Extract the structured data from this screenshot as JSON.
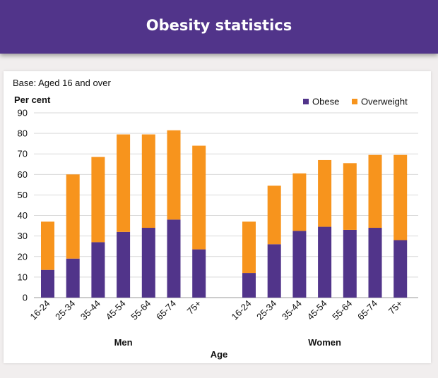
{
  "page": {
    "title": "Obesity statistics"
  },
  "chart_data": {
    "type": "bar",
    "stacked": true,
    "base_note": "Base: Aged 16 and over",
    "ylabel": "Per cent",
    "xlabel": "Age",
    "ylim": [
      0,
      90
    ],
    "yticks": [
      0,
      10,
      20,
      30,
      40,
      50,
      60,
      70,
      80,
      90
    ],
    "grid": true,
    "legend_position": "top-right",
    "groups": [
      {
        "name": "Men",
        "categories": [
          "16-24",
          "25-34",
          "35-44",
          "45-54",
          "55-64",
          "65-74",
          "75+"
        ],
        "series": [
          {
            "name": "Obese",
            "values": [
              13.5,
              19,
              27,
              32,
              34,
              38,
              23.5
            ]
          },
          {
            "name": "Overweight",
            "values": [
              23.5,
              41,
              41.5,
              47.5,
              45.5,
              43.5,
              50.5
            ]
          }
        ]
      },
      {
        "name": "Women",
        "categories": [
          "16-24",
          "25-34",
          "35-44",
          "45-54",
          "55-64",
          "65-74",
          "75+"
        ],
        "series": [
          {
            "name": "Obese",
            "values": [
              12,
              26,
              32.5,
              34.5,
              33,
              34,
              28
            ]
          },
          {
            "name": "Overweight",
            "values": [
              25,
              28.5,
              28,
              32.5,
              32.5,
              35.5,
              41.5
            ]
          }
        ]
      }
    ],
    "colors": {
      "Obese": "#51348a",
      "Overweight": "#f7941d"
    }
  }
}
